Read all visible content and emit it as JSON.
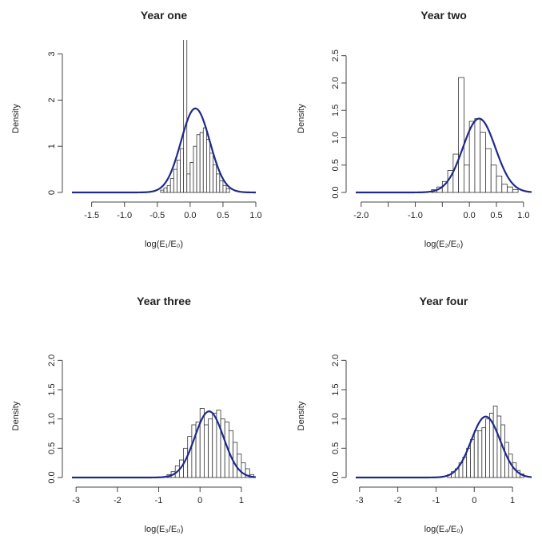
{
  "figure": {
    "curve_color": "#1f2a8a",
    "bar_edge_color": "#333333",
    "bar_fill_color": "#ffffff"
  },
  "chart_data": [
    {
      "type": "bar",
      "title": "Year one",
      "xlabel": "log(E₁/E₀)",
      "ylabel": "Density",
      "xlim": [
        -1.8,
        1.0
      ],
      "ylim": [
        0,
        3.2
      ],
      "xticks": [
        -1.5,
        -1.0,
        -0.5,
        0.0,
        0.5,
        1.0
      ],
      "xtick_labels": [
        "-1.5",
        "-1.0",
        "-0.5",
        "0.0",
        "0.5",
        "1.0"
      ],
      "yticks": [
        0,
        1,
        2,
        3
      ],
      "ytick_labels": [
        "0",
        "1",
        "2",
        "3"
      ],
      "y_tick_labels_rotated": true,
      "bin_start": -0.45,
      "bin_width": 0.05,
      "bars": [
        0.05,
        0.1,
        0.15,
        0.3,
        0.5,
        0.7,
        0.95,
        3.8,
        0.4,
        0.65,
        1.0,
        1.25,
        1.3,
        1.4,
        1.15,
        0.85,
        0.6,
        0.4,
        0.25,
        0.15,
        0.08
      ],
      "curve": {
        "type": "normal",
        "mean": 0.08,
        "sd": 0.22,
        "peak": 1.82
      }
    },
    {
      "type": "bar",
      "title": "Year two",
      "xlabel": "log(E₂/E₀)",
      "ylabel": "Density",
      "xlim": [
        -2.1,
        1.15
      ],
      "ylim": [
        0,
        2.7
      ],
      "xticks": [
        -2.0,
        -1.5,
        -1.0,
        -0.5,
        0.0,
        0.5,
        1.0
      ],
      "xtick_labels": [
        "-2.0",
        "",
        "-1.0",
        "",
        "0.0",
        "0.5",
        "1.0"
      ],
      "yticks": [
        0,
        0.5,
        1.0,
        1.5,
        2.0,
        2.5
      ],
      "ytick_labels": [
        "0.0",
        "0.5",
        "1.0",
        "1.5",
        "2.0",
        "2.5"
      ],
      "y_tick_labels_rotated": true,
      "bin_start": -0.7,
      "bin_width": 0.1,
      "bars": [
        0.05,
        0.1,
        0.2,
        0.4,
        0.7,
        2.1,
        0.5,
        1.3,
        1.35,
        1.1,
        0.8,
        0.5,
        0.3,
        0.15,
        0.1,
        0.05
      ],
      "curve": {
        "type": "normal",
        "mean": 0.18,
        "sd": 0.3,
        "peak": 1.35
      }
    },
    {
      "type": "bar",
      "title": "Year three",
      "xlabel": "log(E₃/E₀)",
      "ylabel": "Density",
      "xlim": [
        -3.1,
        1.35
      ],
      "ylim": [
        0,
        2.1
      ],
      "xticks": [
        -3,
        -2,
        -1,
        0,
        1
      ],
      "xtick_labels": [
        "-3",
        "-2",
        "-1",
        "0",
        "1"
      ],
      "yticks": [
        0,
        0.5,
        1.0,
        1.5,
        2.0
      ],
      "ytick_labels": [
        "0.0",
        "0.5",
        "1.0",
        "1.5",
        "2.0"
      ],
      "y_tick_labels_rotated": true,
      "bin_start": -0.8,
      "bin_width": 0.1,
      "bars": [
        0.05,
        0.1,
        0.2,
        0.3,
        0.5,
        0.7,
        0.9,
        0.95,
        1.18,
        0.9,
        1.0,
        1.1,
        1.15,
        1.0,
        0.95,
        0.8,
        0.6,
        0.4,
        0.25,
        0.15,
        0.05
      ],
      "curve": {
        "type": "normal",
        "mean": 0.22,
        "sd": 0.35,
        "peak": 1.13
      }
    },
    {
      "type": "bar",
      "title": "Year four",
      "xlabel": "log(E₄/E₀)",
      "ylabel": "Density",
      "xlim": [
        -3.1,
        1.5
      ],
      "ylim": [
        0,
        2.1
      ],
      "xticks": [
        -3,
        -2,
        -1,
        0,
        1
      ],
      "xtick_labels": [
        "-3",
        "-2",
        "-1",
        "0",
        "1"
      ],
      "yticks": [
        0,
        0.5,
        1.0,
        1.5,
        2.0
      ],
      "ytick_labels": [
        "0.0",
        "0.5",
        "1.0",
        "1.5",
        "2.0"
      ],
      "y_tick_labels_rotated": true,
      "bin_start": -0.7,
      "bin_width": 0.1,
      "bars": [
        0.05,
        0.1,
        0.15,
        0.25,
        0.35,
        0.5,
        0.65,
        0.8,
        0.8,
        0.85,
        1.0,
        1.1,
        1.22,
        1.05,
        0.9,
        0.6,
        0.4,
        0.25,
        0.12,
        0.06
      ],
      "curve": {
        "type": "normal",
        "mean": 0.3,
        "sd": 0.38,
        "peak": 1.04
      }
    }
  ]
}
